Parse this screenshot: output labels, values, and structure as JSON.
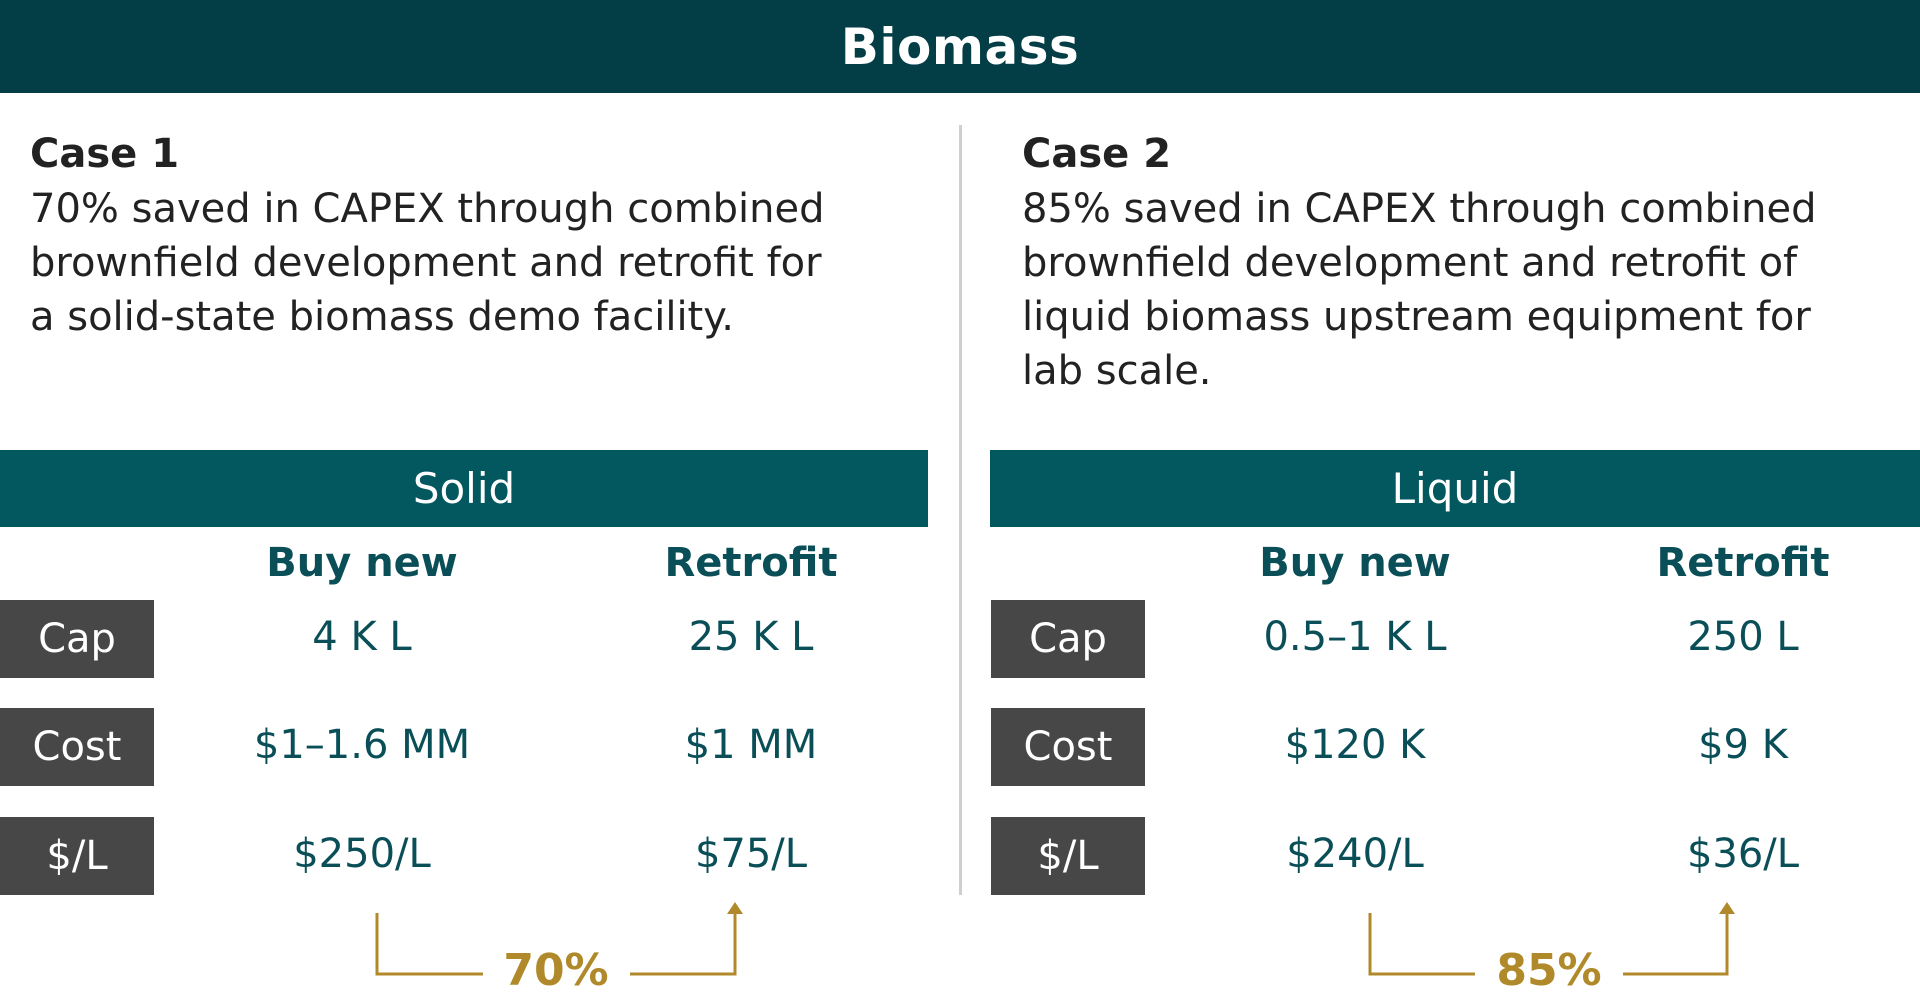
{
  "title": "Biomass",
  "case1": {
    "label": "Case 1",
    "description": "70% saved in CAPEX through combined brownfield development and retrofit for a solid-state biomass demo facility."
  },
  "case2": {
    "label": "Case 2",
    "description": "85% saved in CAPEX through combined brownfield development and retrofit of liquid biomass upstream equipment for lab scale."
  },
  "tables": [
    {
      "header": "Solid",
      "columns": [
        "Buy new",
        "Retrofit"
      ],
      "rows": [
        {
          "label": "Cap",
          "buy_new": "4 K L",
          "retrofit": "25 K L"
        },
        {
          "label": "Cost",
          "buy_new": "$1–1.6 MM",
          "retrofit": "$1 MM"
        },
        {
          "label": "$/L",
          "buy_new": "$250/L",
          "retrofit": "$75/L"
        }
      ],
      "savings": "70%"
    },
    {
      "header": "Liquid",
      "columns": [
        "Buy new",
        "Retrofit"
      ],
      "rows": [
        {
          "label": "Cap",
          "buy_new": "0.5–1 K L",
          "retrofit": "250 L"
        },
        {
          "label": "Cost",
          "buy_new": "$120 K",
          "retrofit": "$9 K"
        },
        {
          "label": "$/L",
          "buy_new": "$240/L",
          "retrofit": "$36/L"
        }
      ],
      "savings": "85%"
    }
  ],
  "colors": {
    "banner": "#033d46",
    "table_header": "#03575f",
    "row_label": "#474747",
    "value_text": "#0a4f58",
    "accent": "#b08a2a"
  }
}
